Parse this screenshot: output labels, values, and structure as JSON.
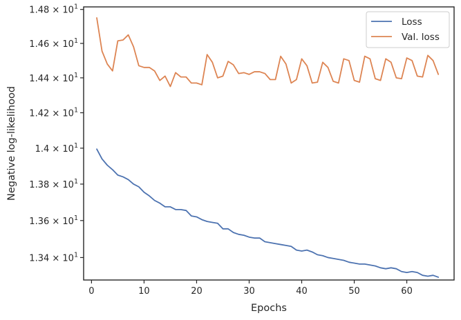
{
  "chart_data": {
    "type": "line",
    "xlabel": "Epochs",
    "ylabel": "Negative log-likelihood",
    "xlim": [
      -1.5,
      69
    ],
    "ylim": [
      13.28,
      14.815
    ],
    "xticks": [
      0,
      10,
      20,
      30,
      40,
      50,
      60
    ],
    "yticks": [
      {
        "value": 13.4,
        "mant": "1.34",
        "exp": "1"
      },
      {
        "value": 13.6,
        "mant": "1.36",
        "exp": "1"
      },
      {
        "value": 13.8,
        "mant": "1.38",
        "exp": "1"
      },
      {
        "value": 14.0,
        "mant": "1.4",
        "exp": "1"
      },
      {
        "value": 14.2,
        "mant": "1.42",
        "exp": "1"
      },
      {
        "value": 14.4,
        "mant": "1.44",
        "exp": "1"
      },
      {
        "value": 14.6,
        "mant": "1.46",
        "exp": "1"
      },
      {
        "value": 14.8,
        "mant": "1.48",
        "exp": "1"
      }
    ],
    "log_scale_y": true,
    "legend_position": "top-right",
    "x": [
      1,
      2,
      3,
      4,
      5,
      6,
      7,
      8,
      9,
      10,
      11,
      12,
      13,
      14,
      15,
      16,
      17,
      18,
      19,
      20,
      21,
      22,
      23,
      24,
      25,
      26,
      27,
      28,
      29,
      30,
      31,
      32,
      33,
      34,
      35,
      36,
      37,
      38,
      39,
      40,
      41,
      42,
      43,
      44,
      45,
      46,
      47,
      48,
      49,
      50,
      51,
      52,
      53,
      54,
      55,
      56,
      57,
      58,
      59,
      60,
      61,
      62,
      63,
      64,
      65,
      66
    ],
    "series": [
      {
        "name": "Loss",
        "color": "#4c72b0",
        "values": [
          13.995,
          13.94,
          13.905,
          13.88,
          13.85,
          13.84,
          13.825,
          13.8,
          13.785,
          13.755,
          13.735,
          13.71,
          13.695,
          13.675,
          13.675,
          13.66,
          13.66,
          13.655,
          13.625,
          13.62,
          13.605,
          13.595,
          13.59,
          13.585,
          13.555,
          13.555,
          13.535,
          13.525,
          13.52,
          13.51,
          13.505,
          13.505,
          13.485,
          13.48,
          13.475,
          13.47,
          13.465,
          13.46,
          13.44,
          13.435,
          13.44,
          13.43,
          13.415,
          13.41,
          13.4,
          13.395,
          13.39,
          13.385,
          13.375,
          13.37,
          13.365,
          13.365,
          13.36,
          13.355,
          13.345,
          13.34,
          13.345,
          13.34,
          13.325,
          13.32,
          13.325,
          13.32,
          13.305,
          13.3,
          13.305,
          13.295
        ]
      },
      {
        "name": "Val. loss",
        "color": "#dd8452",
        "values": [
          14.75,
          14.555,
          14.48,
          14.44,
          14.615,
          14.62,
          14.65,
          14.58,
          14.47,
          14.46,
          14.46,
          14.44,
          14.385,
          14.41,
          14.35,
          14.43,
          14.405,
          14.405,
          14.37,
          14.37,
          14.36,
          14.535,
          14.49,
          14.4,
          14.41,
          14.495,
          14.475,
          14.425,
          14.43,
          14.42,
          14.435,
          14.435,
          14.425,
          14.39,
          14.39,
          14.525,
          14.48,
          14.37,
          14.39,
          14.51,
          14.47,
          14.37,
          14.375,
          14.49,
          14.46,
          14.38,
          14.37,
          14.51,
          14.5,
          14.385,
          14.375,
          14.525,
          14.51,
          14.395,
          14.385,
          14.51,
          14.49,
          14.4,
          14.395,
          14.515,
          14.5,
          14.41,
          14.405,
          14.53,
          14.5,
          14.42
        ]
      }
    ]
  }
}
